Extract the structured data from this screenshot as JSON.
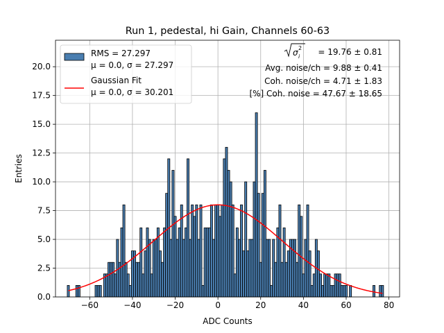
{
  "chart_data": {
    "type": "bar",
    "title": "Run 1, pedestal, hi Gain, Channels 60-63",
    "xlabel": "ADC Counts",
    "ylabel": "Entries",
    "xlim": [
      -76,
      85
    ],
    "ylim": [
      0,
      22.3
    ],
    "xticks": [
      -60,
      -40,
      -20,
      0,
      20,
      40,
      60,
      80
    ],
    "xtick_labels": [
      "−60",
      "−40",
      "−20",
      "0",
      "20",
      "40",
      "60",
      "80"
    ],
    "yticks": [
      0,
      2.5,
      5,
      7.5,
      10,
      12.5,
      15,
      17.5,
      20
    ],
    "ytick_labels": [
      "0.0",
      "2.5",
      "5.0",
      "7.5",
      "10.0",
      "12.5",
      "15.0",
      "17.5",
      "20.0"
    ],
    "grid": true,
    "legend_position": "top-left",
    "bin_width": 1,
    "histogram": {
      "name": "RMS = 27.297",
      "name_line2": "μ = 0.0, σ = 27.297",
      "color": "#4a7eb0",
      "edgecolor": "#000000",
      "bins": [
        [
          -70,
          1
        ],
        [
          -66,
          1
        ],
        [
          -65,
          1
        ],
        [
          -57,
          1
        ],
        [
          -56,
          1
        ],
        [
          -55,
          1
        ],
        [
          -53,
          2
        ],
        [
          -52,
          2
        ],
        [
          -51,
          3
        ],
        [
          -50,
          3
        ],
        [
          -49,
          3
        ],
        [
          -48,
          2
        ],
        [
          -47,
          5
        ],
        [
          -46,
          3
        ],
        [
          -45,
          6
        ],
        [
          -44,
          8
        ],
        [
          -43,
          3
        ],
        [
          -42,
          2
        ],
        [
          -41,
          1
        ],
        [
          -40,
          4
        ],
        [
          -39,
          4
        ],
        [
          -38,
          3
        ],
        [
          -37,
          3
        ],
        [
          -36,
          6
        ],
        [
          -35,
          2
        ],
        [
          -34,
          4
        ],
        [
          -33,
          6
        ],
        [
          -32,
          5
        ],
        [
          -31,
          2
        ],
        [
          -30,
          5
        ],
        [
          -29,
          5
        ],
        [
          -28,
          6
        ],
        [
          -27,
          4
        ],
        [
          -26,
          3
        ],
        [
          -25,
          6
        ],
        [
          -24,
          9
        ],
        [
          -23,
          12
        ],
        [
          -22,
          5
        ],
        [
          -21,
          11
        ],
        [
          -20,
          7
        ],
        [
          -19,
          5
        ],
        [
          -18,
          6
        ],
        [
          -17,
          8
        ],
        [
          -16,
          5
        ],
        [
          -15,
          6
        ],
        [
          -14,
          12
        ],
        [
          -13,
          5
        ],
        [
          -12,
          8
        ],
        [
          -11,
          7
        ],
        [
          -10,
          8
        ],
        [
          -9,
          5
        ],
        [
          -8,
          8
        ],
        [
          -7,
          1
        ],
        [
          -6,
          6
        ],
        [
          -5,
          6
        ],
        [
          -4,
          6
        ],
        [
          -3,
          8
        ],
        [
          -2,
          5
        ],
        [
          -1,
          8
        ],
        [
          0,
          8
        ],
        [
          1,
          7
        ],
        [
          2,
          8
        ],
        [
          3,
          12
        ],
        [
          4,
          13
        ],
        [
          5,
          11
        ],
        [
          6,
          10
        ],
        [
          7,
          8
        ],
        [
          8,
          2
        ],
        [
          9,
          6
        ],
        [
          10,
          5
        ],
        [
          11,
          8
        ],
        [
          12,
          4
        ],
        [
          13,
          10
        ],
        [
          14,
          4
        ],
        [
          15,
          5
        ],
        [
          16,
          5
        ],
        [
          17,
          10
        ],
        [
          18,
          16
        ],
        [
          19,
          9
        ],
        [
          20,
          3
        ],
        [
          21,
          9
        ],
        [
          22,
          11
        ],
        [
          23,
          5
        ],
        [
          24,
          5
        ],
        [
          25,
          1
        ],
        [
          26,
          5
        ],
        [
          27,
          3
        ],
        [
          28,
          6
        ],
        [
          29,
          8
        ],
        [
          30,
          3
        ],
        [
          31,
          6
        ],
        [
          32,
          3
        ],
        [
          33,
          4
        ],
        [
          34,
          5
        ],
        [
          35,
          5
        ],
        [
          36,
          5
        ],
        [
          37,
          3
        ],
        [
          38,
          8
        ],
        [
          39,
          7
        ],
        [
          40,
          2
        ],
        [
          41,
          5
        ],
        [
          42,
          8
        ],
        [
          43,
          4
        ],
        [
          44,
          1
        ],
        [
          45,
          2
        ],
        [
          46,
          5
        ],
        [
          47,
          4
        ],
        [
          48,
          2
        ],
        [
          49,
          1
        ],
        [
          50,
          2
        ],
        [
          51,
          2
        ],
        [
          52,
          2
        ],
        [
          53,
          1
        ],
        [
          54,
          1
        ],
        [
          55,
          2
        ],
        [
          56,
          2
        ],
        [
          57,
          2
        ],
        [
          58,
          1
        ],
        [
          59,
          1
        ],
        [
          60,
          1
        ],
        [
          62,
          1
        ],
        [
          73,
          1
        ],
        [
          76,
          1
        ],
        [
          77,
          1
        ]
      ]
    },
    "fit": {
      "name": "Gaussian Fit",
      "name_line2": "μ = 0.0, σ = 30.201",
      "color": "#ff0000",
      "mu": 0.0,
      "sigma": 30.201,
      "amplitude": 8.0,
      "range": [
        -70,
        77
      ]
    },
    "stats_box": {
      "sigma_label": "= 19.76 ± 0.81",
      "lines": [
        "Avg. noise/ch = 9.88 ± 0.41",
        "Coh. noise/ch = 4.71 ± 1.83",
        "[%] Coh. noise = 47.67 ± 18.65"
      ]
    }
  }
}
